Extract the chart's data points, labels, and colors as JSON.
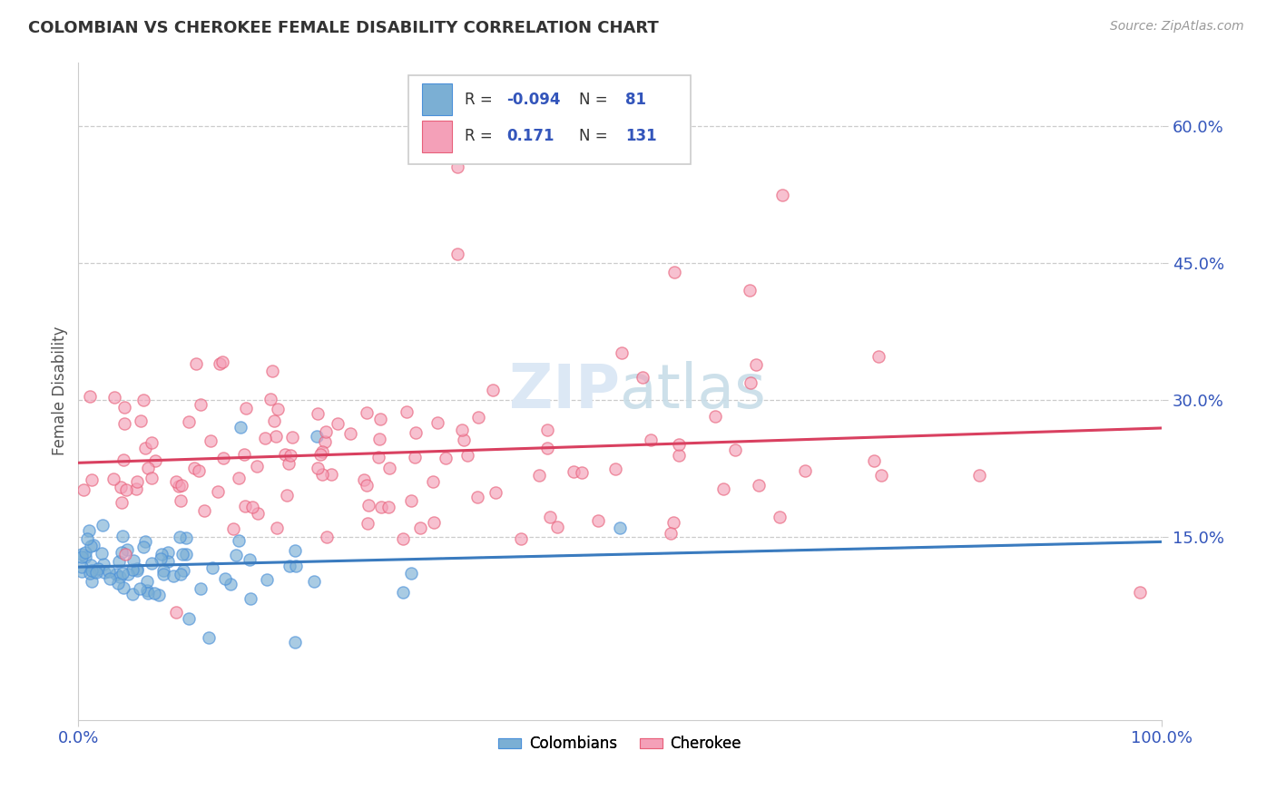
{
  "title": "COLOMBIAN VS CHEROKEE FEMALE DISABILITY CORRELATION CHART",
  "source": "Source: ZipAtlas.com",
  "ylabel": "Female Disability",
  "xlim": [
    0.0,
    1.0
  ],
  "ylim": [
    -0.05,
    0.67
  ],
  "ytick_vals": [
    0.15,
    0.3,
    0.45,
    0.6
  ],
  "ytick_labels": [
    "15.0%",
    "30.0%",
    "45.0%",
    "60.0%"
  ],
  "xtick_vals": [
    0.0,
    1.0
  ],
  "xtick_labels": [
    "0.0%",
    "100.0%"
  ],
  "colombian_color": "#7bafd4",
  "colombian_edge": "#4a90d9",
  "cherokee_color": "#f4a0b8",
  "cherokee_edge": "#e8607a",
  "trend_colombian_color": "#3a7bbf",
  "trend_cherokee_color": "#d94060",
  "dashed_line_color": "#aabbcc",
  "grid_color": "#cccccc",
  "background_color": "#ffffff",
  "watermark_color": "#dce8f5",
  "tick_color": "#3355bb",
  "title_color": "#333333",
  "source_color": "#999999",
  "ylabel_color": "#555555",
  "legend_edge_color": "#cccccc",
  "r_col": "-0.094",
  "n_col": "81",
  "r_cher": "0.171",
  "n_cher": "131",
  "seed": 12345
}
